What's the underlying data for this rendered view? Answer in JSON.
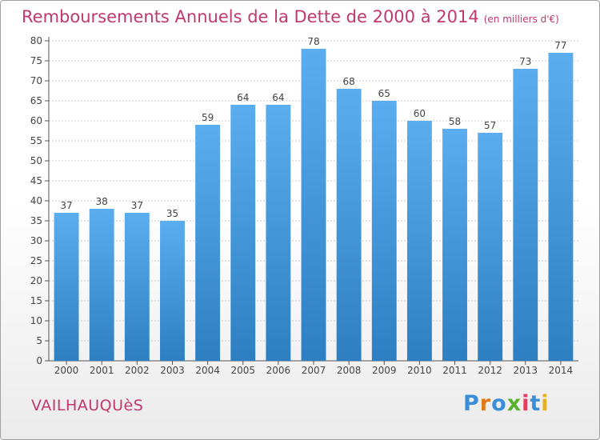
{
  "header": {
    "title": "Remboursements Annuels de la Dette de 2000 à 2014",
    "unit": "(en milliers d'€)"
  },
  "footer": {
    "place": "VAILHAUQUèS",
    "logo": "Proxiti"
  },
  "colors": {
    "title": "#c0386f",
    "bar_top": "#5aaef0",
    "bar_bottom": "#2d7fc1",
    "grid": "#cccccc",
    "logo": [
      "#3a8ed8",
      "#e07a1a",
      "#3a8ed8",
      "#58b22a",
      "#e83a5c",
      "#3a8ed8",
      "#e8b020"
    ]
  },
  "chart_data": {
    "type": "bar",
    "title": "Remboursements Annuels de la Dette de 2000 à 2014",
    "categories": [
      "2000",
      "2001",
      "2002",
      "2003",
      "2004",
      "2005",
      "2006",
      "2007",
      "2008",
      "2009",
      "2010",
      "2011",
      "2012",
      "2013",
      "2014"
    ],
    "values": [
      37,
      38,
      37,
      35,
      59,
      64,
      64,
      78,
      68,
      65,
      60,
      58,
      57,
      73,
      77
    ],
    "ylim": [
      0,
      80
    ],
    "yticks": [
      0,
      5,
      10,
      15,
      20,
      25,
      30,
      35,
      40,
      45,
      50,
      55,
      60,
      65,
      70,
      75,
      80
    ],
    "grid": true,
    "data_labels": true
  }
}
